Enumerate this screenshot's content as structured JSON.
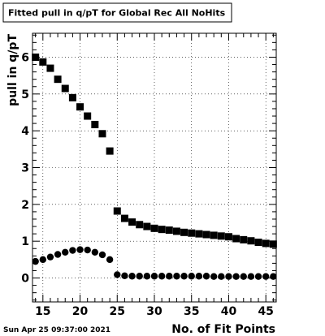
{
  "title": "Fitted pull in q/pT for Global Rec All NoHits",
  "timestamp": "Sun Apr 25 09:37:00 2021",
  "colors": {
    "marker": "#000000",
    "frame": "#000000",
    "background": "#ffffff"
  },
  "chart_data": {
    "type": "scatter",
    "title": "Fitted pull in q/pT for Global Rec All NoHits",
    "xlabel": "No. of Fit Points",
    "ylabel": "pull in q/pT",
    "xlim": [
      13.6,
      46.4
    ],
    "ylim": [
      -0.65,
      6.65
    ],
    "xticks": [
      15,
      20,
      25,
      30,
      35,
      40,
      45
    ],
    "yticks": [
      0,
      1,
      2,
      3,
      4,
      5,
      6
    ],
    "grid": true,
    "series": [
      {
        "marker": "square",
        "x": [
          14,
          15,
          16,
          17,
          18,
          19,
          20,
          21,
          22,
          23,
          24,
          25,
          26,
          27,
          28,
          29,
          30,
          31,
          32,
          33,
          34,
          35,
          36,
          37,
          38,
          39,
          40,
          41,
          42,
          43,
          44,
          45,
          46
        ],
        "values": [
          6.0,
          5.87,
          5.7,
          5.4,
          5.15,
          4.9,
          4.65,
          4.4,
          4.17,
          3.92,
          3.45,
          1.82,
          1.62,
          1.52,
          1.45,
          1.4,
          1.35,
          1.32,
          1.3,
          1.27,
          1.24,
          1.22,
          1.2,
          1.18,
          1.16,
          1.14,
          1.12,
          1.07,
          1.04,
          1.01,
          0.97,
          0.94,
          0.92
        ]
      },
      {
        "marker": "circle",
        "x": [
          14,
          15,
          16,
          17,
          18,
          19,
          20,
          21,
          22,
          23,
          24,
          25,
          26,
          27,
          28,
          29,
          30,
          31,
          32,
          33,
          34,
          35,
          36,
          37,
          38,
          39,
          40,
          41,
          42,
          43,
          44,
          45,
          46
        ],
        "values": [
          0.45,
          0.5,
          0.57,
          0.64,
          0.7,
          0.75,
          0.77,
          0.76,
          0.7,
          0.63,
          0.5,
          0.09,
          0.06,
          0.05,
          0.05,
          0.05,
          0.05,
          0.05,
          0.05,
          0.05,
          0.05,
          0.05,
          0.05,
          0.05,
          0.04,
          0.04,
          0.04,
          0.04,
          0.04,
          0.04,
          0.04,
          0.04,
          0.04
        ]
      }
    ]
  }
}
